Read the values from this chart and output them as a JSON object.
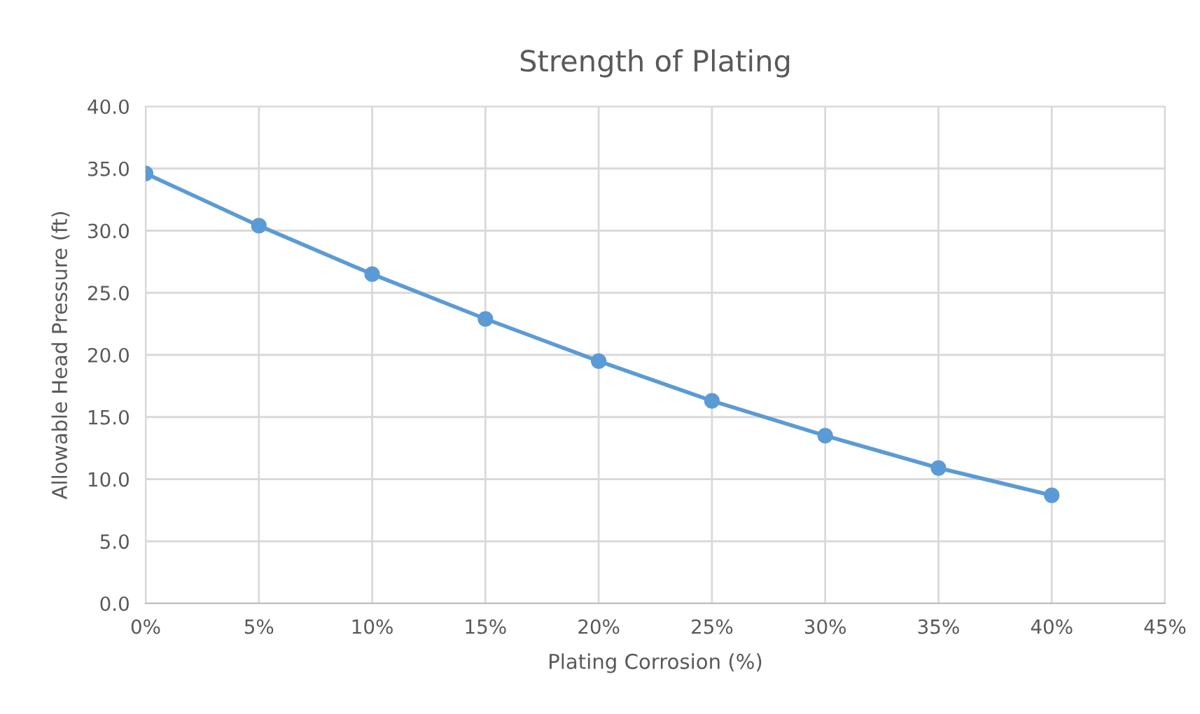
{
  "chart_data": {
    "type": "line",
    "title": "Strength of Plating",
    "xlabel": "Plating Corrosion (%)",
    "ylabel": "Allowable Head Pressure (ft)",
    "x": [
      0,
      5,
      10,
      15,
      20,
      25,
      30,
      35,
      40
    ],
    "series": [
      {
        "color": "#5b9bd5",
        "values": [
          34.6,
          30.4,
          26.5,
          22.9,
          19.5,
          16.3,
          13.5,
          10.9,
          8.7
        ]
      }
    ],
    "xlim": [
      0,
      45
    ],
    "xticks": [
      {
        "value": 0,
        "label": "0%"
      },
      {
        "value": 5,
        "label": "5%"
      },
      {
        "value": 10,
        "label": "10%"
      },
      {
        "value": 15,
        "label": "15%"
      },
      {
        "value": 20,
        "label": "20%"
      },
      {
        "value": 25,
        "label": "25%"
      },
      {
        "value": 30,
        "label": "30%"
      },
      {
        "value": 35,
        "label": "35%"
      },
      {
        "value": 40,
        "label": "40%"
      },
      {
        "value": 45,
        "label": "45%"
      }
    ],
    "ylim": [
      0,
      40
    ],
    "yticks": [
      {
        "value": 0,
        "label": "0.0"
      },
      {
        "value": 5,
        "label": "5.0"
      },
      {
        "value": 10,
        "label": "10.0"
      },
      {
        "value": 15,
        "label": "15.0"
      },
      {
        "value": 20,
        "label": "20.0"
      },
      {
        "value": 25,
        "label": "25.0"
      },
      {
        "value": 30,
        "label": "30.0"
      },
      {
        "value": 35,
        "label": "35.0"
      },
      {
        "value": 40,
        "label": "40.0"
      }
    ],
    "grid": true,
    "marker": "circle",
    "line_style": "solid",
    "legend": false
  }
}
